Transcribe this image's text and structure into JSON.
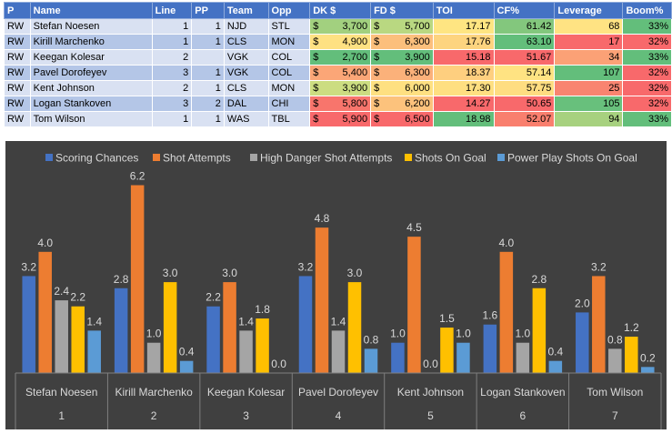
{
  "table": {
    "columns": [
      "P",
      "Name",
      "Line",
      "PP",
      "Team",
      "Opp",
      "DK $",
      "FD $",
      "TOI",
      "CF%",
      "Leverage",
      "Boom%"
    ],
    "rows": [
      {
        "p": "RW",
        "name": "Stefan Noesen",
        "line": "1",
        "pp": "1",
        "team": "NJD",
        "opp": "STL",
        "dk_cur": "$",
        "dk": "3,700",
        "fd_cur": "$",
        "fd": "5,700",
        "toi": "17.17",
        "cf": "61.42",
        "lev": "68",
        "boom": "33%"
      },
      {
        "p": "RW",
        "name": "Kirill Marchenko",
        "line": "1",
        "pp": "1",
        "team": "CLS",
        "opp": "MON",
        "dk_cur": "$",
        "dk": "4,900",
        "fd_cur": "$",
        "fd": "6,300",
        "toi": "17.76",
        "cf": "63.10",
        "lev": "17",
        "boom": "32%"
      },
      {
        "p": "RW",
        "name": "Keegan Kolesar",
        "line": "2",
        "pp": "",
        "team": "VGK",
        "opp": "COL",
        "dk_cur": "$",
        "dk": "2,700",
        "fd_cur": "$",
        "fd": "3,900",
        "toi": "15.18",
        "cf": "51.67",
        "lev": "34",
        "boom": "33%"
      },
      {
        "p": "RW",
        "name": "Pavel Dorofeyev",
        "line": "3",
        "pp": "1",
        "team": "VGK",
        "opp": "COL",
        "dk_cur": "$",
        "dk": "5,400",
        "fd_cur": "$",
        "fd": "6,300",
        "toi": "18.37",
        "cf": "57.14",
        "lev": "107",
        "boom": "32%"
      },
      {
        "p": "RW",
        "name": "Kent Johnson",
        "line": "2",
        "pp": "1",
        "team": "CLS",
        "opp": "MON",
        "dk_cur": "$",
        "dk": "3,900",
        "fd_cur": "$",
        "fd": "6,000",
        "toi": "17.30",
        "cf": "57.75",
        "lev": "25",
        "boom": "32%"
      },
      {
        "p": "RW",
        "name": "Logan Stankoven",
        "line": "3",
        "pp": "2",
        "team": "DAL",
        "opp": "CHI",
        "dk_cur": "$",
        "dk": "5,800",
        "fd_cur": "$",
        "fd": "6,200",
        "toi": "14.27",
        "cf": "50.65",
        "lev": "105",
        "boom": "32%"
      },
      {
        "p": "RW",
        "name": "Tom Wilson",
        "line": "1",
        "pp": "1",
        "team": "WAS",
        "opp": "TBL",
        "dk_cur": "$",
        "dk": "5,900",
        "fd_cur": "$",
        "fd": "6,500",
        "toi": "18.98",
        "cf": "52.07",
        "lev": "94",
        "boom": "33%"
      }
    ],
    "cell_colors": {
      "dk": [
        "#a2d07f",
        "#fee182",
        "#63be7b",
        "#fba677",
        "#ccdd81",
        "#f8756c",
        "#f8696b"
      ],
      "fd": [
        "#b9d881",
        "#fcbf7c",
        "#63be7b",
        "#fbb17a",
        "#fee081",
        "#fcc27c",
        "#f8696b"
      ],
      "toi": [
        "#fee582",
        "#fdd47f",
        "#f8696b",
        "#fecf7f",
        "#fedf81",
        "#f8696b",
        "#63be7b"
      ],
      "cf": [
        "#83c77d",
        "#63be7b",
        "#f8696b",
        "#ffe382",
        "#fedd81",
        "#f8696b",
        "#f97f6e"
      ],
      "lev": [
        "#ffe383",
        "#f8696b",
        "#fba176",
        "#63be7b",
        "#f98470",
        "#68c07c",
        "#a7d17f"
      ],
      "boom": [
        "#63be7b",
        "#f8696b",
        "#63be7b",
        "#f8696b",
        "#f8696b",
        "#f8696b",
        "#63be7b"
      ]
    }
  },
  "chart_data": {
    "type": "bar",
    "title": "",
    "xlabel": "",
    "ylabel": "",
    "ylim": [
      0,
      6.5
    ],
    "grid": false,
    "legend_position": "top",
    "categories": [
      "Stefan Noesen",
      "Kirill Marchenko",
      "Keegan Kolesar",
      "Pavel Dorofeyev",
      "Kent Johnson",
      "Logan Stankoven",
      "Tom Wilson"
    ],
    "category_index": [
      "1",
      "2",
      "3",
      "4",
      "5",
      "6",
      "7"
    ],
    "series": [
      {
        "name": "Scoring Chances",
        "color": "#4472c4",
        "values": [
          3.2,
          2.8,
          2.2,
          3.2,
          1.0,
          1.6,
          2.0
        ]
      },
      {
        "name": "Shot Attempts",
        "color": "#ed7d31",
        "values": [
          4.0,
          6.2,
          3.0,
          4.8,
          4.5,
          4.0,
          3.2
        ]
      },
      {
        "name": "High Danger Shot Attempts",
        "color": "#a5a5a5",
        "values": [
          2.4,
          1.0,
          1.4,
          1.4,
          0.0,
          1.0,
          0.8
        ]
      },
      {
        "name": "Shots On Goal",
        "color": "#ffc000",
        "values": [
          2.2,
          3.0,
          1.8,
          3.0,
          1.5,
          2.8,
          1.2
        ]
      },
      {
        "name": "Power Play Shots On Goal",
        "color": "#5b9bd5",
        "values": [
          1.4,
          0.4,
          0.0,
          0.8,
          1.0,
          0.4,
          0.2
        ]
      }
    ]
  }
}
